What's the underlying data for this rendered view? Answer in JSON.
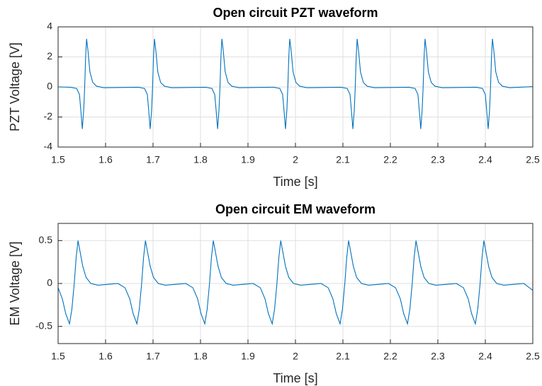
{
  "chart_data": [
    {
      "type": "line",
      "title": "Open circuit PZT waveform",
      "xlabel": "Time [s]",
      "ylabel": "PZT Voltage [V]",
      "color": "#0072bd",
      "grid": true,
      "xlim": [
        1.5,
        2.5
      ],
      "xticks": [
        1.5,
        1.6,
        1.7,
        1.8,
        1.9,
        2,
        2.1,
        2.2,
        2.3,
        2.4,
        2.5
      ],
      "ylim": [
        -4,
        4
      ],
      "yticks": [
        -4,
        -2,
        0,
        2,
        4
      ],
      "x": [
        1.5,
        1.526,
        1.539,
        1.545,
        1.548,
        1.551,
        1.554,
        1.556,
        1.558,
        1.56,
        1.563,
        1.567,
        1.573,
        1.581,
        1.596,
        1.669,
        1.682,
        1.688,
        1.691,
        1.694,
        1.697,
        1.699,
        1.701,
        1.703,
        1.706,
        1.71,
        1.716,
        1.724,
        1.739,
        1.811,
        1.824,
        1.83,
        1.833,
        1.836,
        1.839,
        1.841,
        1.843,
        1.845,
        1.848,
        1.852,
        1.858,
        1.866,
        1.881,
        1.954,
        1.967,
        1.973,
        1.976,
        1.979,
        1.982,
        1.984,
        1.986,
        1.988,
        1.991,
        1.995,
        2.001,
        2.009,
        2.024,
        2.096,
        2.109,
        2.115,
        2.118,
        2.121,
        2.124,
        2.126,
        2.128,
        2.13,
        2.133,
        2.137,
        2.143,
        2.151,
        2.166,
        2.239,
        2.252,
        2.258,
        2.261,
        2.264,
        2.267,
        2.269,
        2.271,
        2.273,
        2.276,
        2.28,
        2.286,
        2.294,
        2.309,
        2.381,
        2.394,
        2.4,
        2.403,
        2.406,
        2.409,
        2.411,
        2.413,
        2.415,
        2.418,
        2.422,
        2.428,
        2.436,
        2.451,
        2.5
      ],
      "values": [
        0,
        -0.02,
        -0.1,
        -0.5,
        -1.6,
        -2.8,
        -1.5,
        0,
        2,
        3.2,
        2.4,
        1,
        0.3,
        0.05,
        -0.05,
        -0.02,
        -0.1,
        -0.5,
        -1.6,
        -2.8,
        -1.5,
        0,
        2,
        3.2,
        2.4,
        1,
        0.3,
        0.05,
        -0.05,
        -0.02,
        -0.1,
        -0.5,
        -1.6,
        -2.8,
        -1.5,
        0,
        2,
        3.2,
        2.4,
        1,
        0.3,
        0.05,
        -0.05,
        -0.02,
        -0.1,
        -0.5,
        -1.6,
        -2.8,
        -1.5,
        0,
        2,
        3.2,
        2.4,
        1,
        0.3,
        0.05,
        -0.05,
        -0.02,
        -0.1,
        -0.5,
        -1.6,
        -2.8,
        -1.5,
        0,
        2,
        3.2,
        2.4,
        1,
        0.3,
        0.05,
        -0.05,
        -0.02,
        -0.1,
        -0.5,
        -1.6,
        -2.8,
        -1.5,
        0,
        2,
        3.2,
        2.4,
        1,
        0.3,
        0.05,
        -0.05,
        -0.02,
        -0.1,
        -0.5,
        -1.6,
        -2.8,
        -1.5,
        0,
        2,
        3.2,
        2.4,
        1,
        0.3,
        0.05,
        -0.05,
        0.02
      ]
    },
    {
      "type": "line",
      "title": "Open circuit EM waveform",
      "xlabel": "Time [s]",
      "ylabel": "EM Voltage [V]",
      "color": "#0072bd",
      "grid": true,
      "xlim": [
        1.5,
        2.5
      ],
      "xticks": [
        1.5,
        1.6,
        1.7,
        1.8,
        1.9,
        2,
        2.1,
        2.2,
        2.3,
        2.4,
        2.5
      ],
      "ylim": [
        -0.7,
        0.7
      ],
      "yticks": [
        -0.5,
        0,
        0.5
      ],
      "x": [
        1.5,
        1.509,
        1.516,
        1.524,
        1.529,
        1.534,
        1.538,
        1.542,
        1.546,
        1.552,
        1.559,
        1.569,
        1.584,
        1.626,
        1.641,
        1.651,
        1.658,
        1.666,
        1.671,
        1.676,
        1.68,
        1.684,
        1.688,
        1.694,
        1.701,
        1.711,
        1.726,
        1.769,
        1.784,
        1.794,
        1.801,
        1.809,
        1.814,
        1.819,
        1.823,
        1.827,
        1.831,
        1.837,
        1.844,
        1.854,
        1.869,
        1.911,
        1.926,
        1.936,
        1.943,
        1.951,
        1.956,
        1.961,
        1.965,
        1.969,
        1.973,
        1.979,
        1.986,
        1.996,
        2.011,
        2.054,
        2.069,
        2.079,
        2.086,
        2.094,
        2.099,
        2.104,
        2.108,
        2.112,
        2.116,
        2.122,
        2.129,
        2.139,
        2.154,
        2.196,
        2.211,
        2.221,
        2.228,
        2.236,
        2.241,
        2.246,
        2.25,
        2.254,
        2.258,
        2.264,
        2.271,
        2.281,
        2.296,
        2.339,
        2.354,
        2.364,
        2.371,
        2.379,
        2.384,
        2.389,
        2.393,
        2.397,
        2.401,
        2.407,
        2.414,
        2.424,
        2.439,
        2.481,
        2.5
      ],
      "values": [
        -0.05,
        -0.18,
        -0.35,
        -0.47,
        -0.3,
        0,
        0.3,
        0.5,
        0.38,
        0.2,
        0.07,
        0,
        -0.02,
        0,
        -0.05,
        -0.18,
        -0.35,
        -0.47,
        -0.3,
        0,
        0.3,
        0.5,
        0.38,
        0.2,
        0.07,
        0,
        -0.02,
        0,
        -0.05,
        -0.18,
        -0.35,
        -0.47,
        -0.3,
        0,
        0.3,
        0.5,
        0.38,
        0.2,
        0.07,
        0,
        -0.02,
        0,
        -0.05,
        -0.18,
        -0.35,
        -0.47,
        -0.3,
        0,
        0.3,
        0.5,
        0.38,
        0.2,
        0.07,
        0,
        -0.02,
        0,
        -0.05,
        -0.18,
        -0.35,
        -0.47,
        -0.3,
        0,
        0.3,
        0.5,
        0.38,
        0.2,
        0.07,
        0,
        -0.02,
        0,
        -0.05,
        -0.18,
        -0.35,
        -0.47,
        -0.3,
        0,
        0.3,
        0.5,
        0.38,
        0.2,
        0.07,
        0,
        -0.02,
        0,
        -0.05,
        -0.18,
        -0.35,
        -0.47,
        -0.3,
        0,
        0.3,
        0.5,
        0.38,
        0.2,
        0.07,
        0,
        -0.02,
        0,
        -0.08
      ]
    }
  ]
}
